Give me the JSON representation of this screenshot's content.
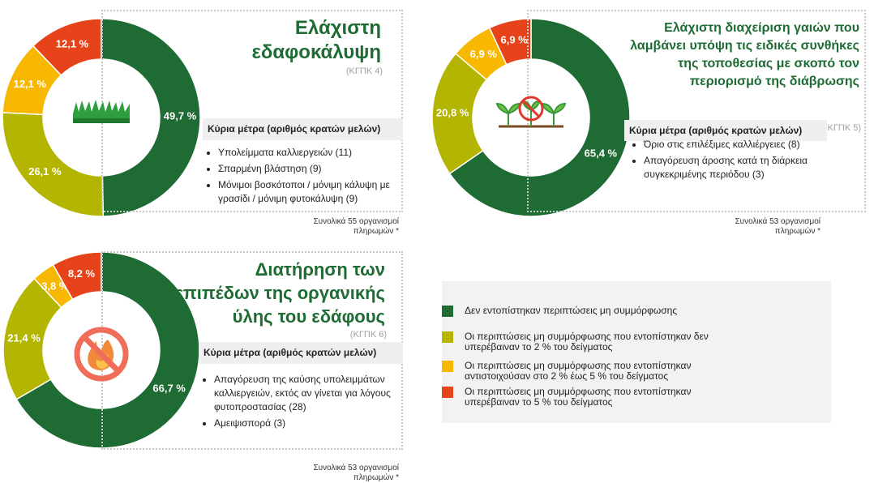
{
  "chart_data": [
    {
      "type": "pie",
      "title": [
        "Ελάχιστη",
        "εδαφοκάλυψη"
      ],
      "subtitle": "(ΚΓΠΚ 4)",
      "measures_title": "Κύρια μέτρα (αριθμός κρατών μελών)",
      "measures": [
        "Υπολείμματα καλλιεργειών  (11)",
        "Σπαρμένη βλάστηση (9)",
        "Μόνιμοι βοσκότοποι / μόνιμη κάλυψη με γρασίδι / μόνιμη φυτοκάλυψη (9)"
      ],
      "note": "Συνολικά 55 οργανισμοί πληρωμών *",
      "values": [
        49.7,
        26.1,
        12.1,
        12.1
      ],
      "value_labels": [
        "49,7 %",
        "26,1 %",
        "12,1 %",
        "12,1 %"
      ],
      "colors": [
        "#1e6b34",
        "#b3b500",
        "#f8b800",
        "#e6431b"
      ]
    },
    {
      "type": "pie",
      "title": [
        "Ελάχιστη διαχείριση γαιών που",
        "λαμβάνει υπόψη τις ειδικές συνθήκες",
        "της τοποθεσίας με σκοπό τον",
        "περιορισμό της διάβρωσης"
      ],
      "subtitle": "(ΚΓΠΚ 5)",
      "measures_title": "Κύρια μέτρα (αριθμός κρατών μελών)",
      "measures": [
        "Όριο στις επιλέξιμες καλλιέργειες  (8)",
        "Απαγόρευση άροσης κατά τη διάρκεια συγκεκριμένης περιόδου (3)"
      ],
      "note": "Συνολικά 53 οργανισμοί πληρωμών *",
      "values": [
        65.4,
        20.8,
        6.9,
        6.9
      ],
      "value_labels": [
        "65,4 %",
        "20,8 %",
        "6,9 %",
        "6,9 %"
      ],
      "colors": [
        "#1e6b34",
        "#b3b500",
        "#f8b800",
        "#e6431b"
      ]
    },
    {
      "type": "pie",
      "title": [
        "Διατήρηση των",
        "επιπέδων της οργανικής",
        "ύλης του εδάφους"
      ],
      "subtitle": "(ΚΓΠΚ 6)",
      "measures_title": "Κύρια μέτρα (αριθμός κρατών μελών)",
      "measures": [
        "Απαγόρευση της καύσης υπολειμμάτων καλλιεργειών,  εκτός αν γίνεται για λόγους φυτοπροστασίας (28)",
        "Αμειψισπορά (3)"
      ],
      "note": "Συνολικά 53 οργανισμοί πληρωμών *",
      "values": [
        66.7,
        21.4,
        3.8,
        8.2
      ],
      "value_labels": [
        "66,7 %",
        "21,4 %",
        "3,8 %",
        "8,2 %"
      ],
      "colors": [
        "#1e6b34",
        "#b3b500",
        "#f8b800",
        "#e6431b"
      ]
    }
  ],
  "legend": {
    "names": [
      "Δεν εντοπίστηκαν περιπτώσεις μη συμμόρφωσης",
      "Οι περιπτώσεις μη συμμόρφωσης που εντοπίστηκαν δεν υπερέβαιναν το 2 % του δείγματος",
      "Οι περιπτώσεις μη συμμόρφωσης που εντοπίστηκαν αντιστοιχούσαν στο 2 % έως 5 % του δείγματος",
      "Οι περιπτώσεις μη συμμόρφωσης που εντοπίστηκαν υπερέβαιναν το 5 % του δείγματος"
    ],
    "colors": [
      "#1e6b34",
      "#b3b500",
      "#f8b800",
      "#e6431b"
    ]
  }
}
